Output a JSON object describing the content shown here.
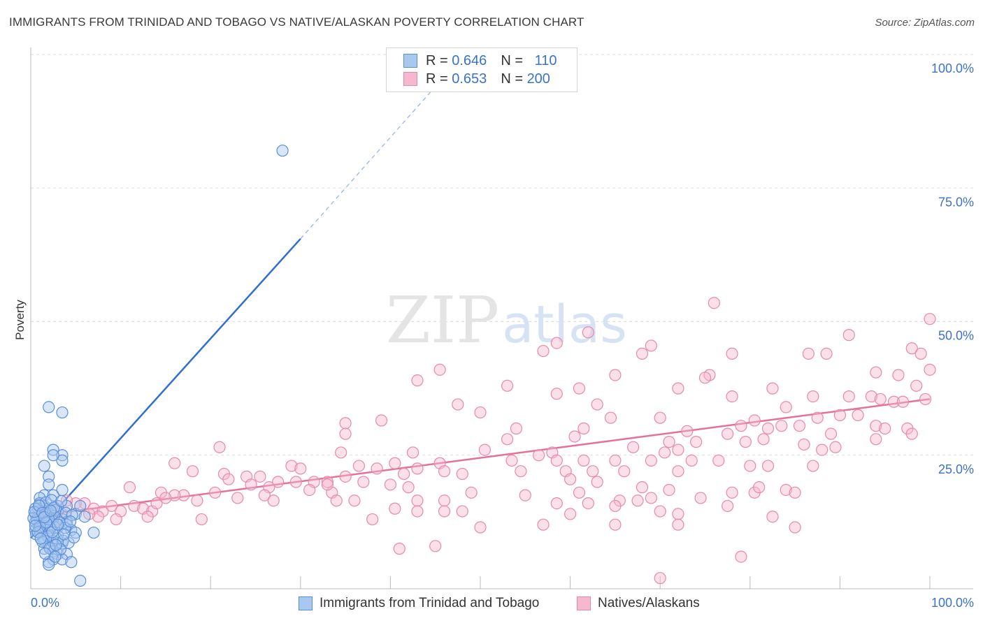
{
  "title": "IMMIGRANTS FROM TRINIDAD AND TOBAGO VS NATIVE/ALASKAN POVERTY CORRELATION CHART",
  "source": "Source: ZipAtlas.com",
  "watermark": {
    "zip": "ZIP",
    "atlas": "atlas"
  },
  "legend": {
    "rows": [
      {
        "r_label": "R =",
        "r_value": "0.646",
        "n_label": "N =",
        "n_value": "110"
      },
      {
        "r_label": "R =",
        "r_value": "0.653",
        "n_label": "N =",
        "n_value": "200"
      }
    ]
  },
  "colors": {
    "blue_fill": "#a9c8f0",
    "blue_stroke": "#5a8fd8",
    "blue_line": "#2f6fcf",
    "pink_fill": "#f6b8ce",
    "pink_stroke": "#e58aab",
    "pink_line": "#e4709c",
    "tick_label": "#3a73c8",
    "grid": "#dddddd"
  },
  "chart_data": {
    "type": "scatter",
    "ylabel": "Poverty",
    "x_ticks": [
      "0.0%",
      "100.0%"
    ],
    "y_ticks": [
      "25.0%",
      "50.0%",
      "75.0%",
      "100.0%"
    ],
    "xlim": [
      0,
      100
    ],
    "ylim": [
      0,
      100
    ],
    "grid": "horizontal dashed",
    "legend_placement": "bottom-center",
    "series": [
      {
        "name": "Immigrants from Trinidad and Tobago",
        "color": "blue",
        "trend": {
          "x0": 0,
          "y0": 9.5,
          "x1": 30,
          "y1": 65.5,
          "dashed_to": [
            45,
            94
          ]
        },
        "points": [
          [
            28,
            82
          ],
          [
            2,
            34
          ],
          [
            3.5,
            33
          ],
          [
            2.5,
            26
          ],
          [
            3.5,
            25
          ],
          [
            3.5,
            24
          ],
          [
            2.5,
            25
          ],
          [
            1.5,
            23
          ],
          [
            2,
            21
          ],
          [
            2,
            19.5
          ],
          [
            3.5,
            18.5
          ],
          [
            1.5,
            17.5
          ],
          [
            2.5,
            17.5
          ],
          [
            1,
            17
          ],
          [
            1,
            16
          ],
          [
            1.5,
            15.5
          ],
          [
            0.8,
            15
          ],
          [
            1,
            14.5
          ],
          [
            0.5,
            14
          ],
          [
            0.8,
            13.5
          ],
          [
            1,
            13
          ],
          [
            0.5,
            12.5
          ],
          [
            1,
            12
          ],
          [
            1.5,
            12
          ],
          [
            0.5,
            11
          ],
          [
            1,
            10.5
          ],
          [
            2,
            15
          ],
          [
            2,
            14
          ],
          [
            2.5,
            13
          ],
          [
            2,
            12.5
          ],
          [
            2.5,
            12
          ],
          [
            3,
            11.5
          ],
          [
            3,
            14.5
          ],
          [
            3.5,
            13
          ],
          [
            4,
            12.5
          ],
          [
            4,
            12
          ],
          [
            4.5,
            11
          ],
          [
            5,
            10.5
          ],
          [
            3,
            10
          ],
          [
            2,
            10
          ],
          [
            1.5,
            9.5
          ],
          [
            1.5,
            9
          ],
          [
            2.5,
            9
          ],
          [
            3,
            8.5
          ],
          [
            3.5,
            8.5
          ],
          [
            2,
            8
          ],
          [
            1.5,
            7.5
          ],
          [
            2.5,
            7
          ],
          [
            3,
            6.5
          ],
          [
            4,
            6.5
          ],
          [
            2.5,
            5.5
          ],
          [
            3.5,
            5.5
          ],
          [
            2,
            5
          ],
          [
            4.5,
            5
          ],
          [
            2,
            4.5
          ],
          [
            5.5,
            1.5
          ],
          [
            7,
            10.5
          ],
          [
            5,
            14
          ],
          [
            6,
            13.5
          ],
          [
            4,
            15.5
          ],
          [
            5.5,
            15.5
          ],
          [
            3,
            15.5
          ],
          [
            1,
            15.5
          ],
          [
            0.5,
            15
          ],
          [
            1.8,
            14.5
          ],
          [
            2.8,
            14.8
          ],
          [
            1.2,
            13.8
          ],
          [
            0.7,
            12.8
          ],
          [
            1.8,
            12.6
          ],
          [
            2.6,
            13.6
          ],
          [
            0.3,
            13.2
          ],
          [
            1.4,
            11.8
          ],
          [
            0.9,
            11.2
          ],
          [
            2.2,
            11.4
          ],
          [
            3.2,
            12.4
          ],
          [
            3.8,
            11.4
          ],
          [
            1.1,
            10.8
          ],
          [
            0.6,
            10.2
          ],
          [
            1.9,
            9.8
          ],
          [
            2.9,
            9.4
          ],
          [
            3.6,
            9.0
          ],
          [
            4.2,
            8.6
          ],
          [
            1.3,
            8.8
          ],
          [
            2.1,
            7.6
          ],
          [
            3.3,
            7.4
          ],
          [
            1.6,
            6.6
          ],
          [
            2.7,
            6.0
          ],
          [
            0.4,
            14.4
          ],
          [
            1.7,
            16.2
          ],
          [
            2.3,
            16.6
          ],
          [
            3.9,
            14.2
          ],
          [
            4.6,
            13.8
          ],
          [
            1.0,
            11.6
          ],
          [
            0.8,
            10.6
          ],
          [
            2.0,
            13.0
          ],
          [
            2.4,
            10.6
          ],
          [
            3.0,
            12.0
          ],
          [
            0.9,
            15.6
          ],
          [
            1.3,
            14.2
          ],
          [
            1.7,
            12.4
          ],
          [
            0.5,
            11.8
          ],
          [
            2.6,
            15.2
          ],
          [
            3.4,
            16.4
          ],
          [
            4.4,
            12.6
          ],
          [
            1.1,
            9.4
          ],
          [
            2.8,
            8.2
          ],
          [
            3.7,
            10.2
          ],
          [
            4.8,
            9.6
          ],
          [
            1.5,
            13.4
          ],
          [
            2.2,
            14.6
          ]
        ]
      },
      {
        "name": "Natives/Alaskans",
        "color": "pink",
        "trend": {
          "x0": 0,
          "y0": 13.5,
          "x1": 100,
          "y1": 35.5
        },
        "points": [
          [
            76,
            53.5
          ],
          [
            100,
            50.5
          ],
          [
            62,
            48
          ],
          [
            58.5,
            46
          ],
          [
            91,
            47.5
          ],
          [
            69,
            45.5
          ],
          [
            57,
            44.5
          ],
          [
            68,
            44
          ],
          [
            78,
            44
          ],
          [
            86.5,
            44
          ],
          [
            88.5,
            44
          ],
          [
            99,
            44
          ],
          [
            98,
            45
          ],
          [
            45.5,
            41
          ],
          [
            43,
            39
          ],
          [
            65,
            40
          ],
          [
            75.5,
            40
          ],
          [
            75,
            39.5
          ],
          [
            94,
            40.5
          ],
          [
            96.5,
            40
          ],
          [
            100,
            41
          ],
          [
            53,
            38
          ],
          [
            61,
            37.5
          ],
          [
            72,
            37.5
          ],
          [
            82.5,
            37.5
          ],
          [
            98.5,
            38
          ],
          [
            58.5,
            36.5
          ],
          [
            78,
            36
          ],
          [
            87,
            36
          ],
          [
            91,
            36
          ],
          [
            93.5,
            36
          ],
          [
            94.5,
            35.5
          ],
          [
            96,
            35
          ],
          [
            97,
            35
          ],
          [
            99.5,
            35.5
          ],
          [
            47.5,
            34.5
          ],
          [
            63,
            34.5
          ],
          [
            84,
            34
          ],
          [
            50,
            33
          ],
          [
            70,
            32
          ],
          [
            64.5,
            32
          ],
          [
            80.5,
            31.5
          ],
          [
            87.5,
            32
          ],
          [
            90,
            32.5
          ],
          [
            92,
            32.5
          ],
          [
            94,
            30.5
          ],
          [
            35,
            31
          ],
          [
            79,
            30.5
          ],
          [
            82,
            30
          ],
          [
            83.5,
            30.5
          ],
          [
            85.5,
            30.5
          ],
          [
            95,
            30
          ],
          [
            97.5,
            30
          ],
          [
            39,
            31.5
          ],
          [
            54,
            30
          ],
          [
            61.5,
            30
          ],
          [
            73,
            29.5
          ],
          [
            77.5,
            29
          ],
          [
            89,
            29
          ],
          [
            35,
            29
          ],
          [
            53,
            28
          ],
          [
            60.5,
            28.5
          ],
          [
            71,
            27.5
          ],
          [
            74,
            27.5
          ],
          [
            79.5,
            27.5
          ],
          [
            81.5,
            28
          ],
          [
            86,
            27
          ],
          [
            94,
            28
          ],
          [
            98,
            29
          ],
          [
            21,
            26.5
          ],
          [
            42.5,
            25.5
          ],
          [
            50.5,
            26
          ],
          [
            56.5,
            25
          ],
          [
            58,
            25.5
          ],
          [
            67,
            26.5
          ],
          [
            70.5,
            25.5
          ],
          [
            72,
            26
          ],
          [
            88,
            26
          ],
          [
            89.5,
            26.5
          ],
          [
            34.5,
            25.5
          ],
          [
            40.5,
            23.5
          ],
          [
            45.5,
            23.5
          ],
          [
            53.5,
            24
          ],
          [
            58.5,
            24
          ],
          [
            61.5,
            24
          ],
          [
            65,
            24
          ],
          [
            69,
            24
          ],
          [
            73.5,
            24
          ],
          [
            76.5,
            24
          ],
          [
            80,
            23
          ],
          [
            82,
            23
          ],
          [
            87,
            23
          ],
          [
            16,
            23.5
          ],
          [
            29,
            23
          ],
          [
            36.5,
            23
          ],
          [
            38.5,
            22.5
          ],
          [
            43,
            22.5
          ],
          [
            46,
            22
          ],
          [
            54.5,
            22
          ],
          [
            59.5,
            22
          ],
          [
            62.5,
            22
          ],
          [
            66,
            22
          ],
          [
            72,
            22
          ],
          [
            18,
            22
          ],
          [
            21.5,
            21.5
          ],
          [
            22,
            20.5
          ],
          [
            24,
            21
          ],
          [
            25.5,
            21
          ],
          [
            27.5,
            20
          ],
          [
            29.5,
            20
          ],
          [
            31.5,
            20
          ],
          [
            33,
            20
          ],
          [
            30,
            22.5
          ],
          [
            24.5,
            19.5
          ],
          [
            26.5,
            19
          ],
          [
            31,
            18.5
          ],
          [
            33.5,
            18
          ],
          [
            35,
            21
          ],
          [
            48,
            21.5
          ],
          [
            37,
            20
          ],
          [
            40,
            19.5
          ],
          [
            41.5,
            21.5
          ],
          [
            42,
            19
          ],
          [
            11,
            19
          ],
          [
            14.5,
            18
          ],
          [
            17,
            17.5
          ],
          [
            18.5,
            16.5
          ],
          [
            16,
            17.5
          ],
          [
            20.5,
            18
          ],
          [
            23,
            17
          ],
          [
            26,
            17.5
          ],
          [
            27,
            16.5
          ],
          [
            34,
            16.5
          ],
          [
            36,
            16.5
          ],
          [
            33,
            19.5
          ],
          [
            43,
            16.5
          ],
          [
            46,
            16.5
          ],
          [
            49,
            18
          ],
          [
            55,
            17.5
          ],
          [
            58.5,
            16
          ],
          [
            62,
            16
          ],
          [
            65.5,
            16.5
          ],
          [
            67.5,
            16.5
          ],
          [
            68,
            19
          ],
          [
            69,
            17
          ],
          [
            71,
            18.5
          ],
          [
            74.5,
            17
          ],
          [
            78,
            18
          ],
          [
            80.5,
            18
          ],
          [
            84,
            18.5
          ],
          [
            85,
            18
          ],
          [
            81,
            19
          ],
          [
            6,
            16
          ],
          [
            7,
            15
          ],
          [
            8,
            14.5
          ],
          [
            9,
            15.5
          ],
          [
            10,
            14.5
          ],
          [
            11.5,
            15.5
          ],
          [
            12.5,
            15
          ],
          [
            13.5,
            14.5
          ],
          [
            14,
            16
          ],
          [
            15,
            17
          ],
          [
            13,
            13.5
          ],
          [
            9.5,
            13
          ],
          [
            7.5,
            13.5
          ],
          [
            5,
            16
          ],
          [
            4,
            16.5
          ],
          [
            3,
            15.5
          ],
          [
            2,
            14
          ],
          [
            1.5,
            13
          ],
          [
            1,
            13.5
          ],
          [
            2.5,
            12.5
          ],
          [
            3.5,
            14
          ],
          [
            6.5,
            14
          ],
          [
            40.5,
            15
          ],
          [
            43,
            14.5
          ],
          [
            46,
            14.5
          ],
          [
            48,
            14.5
          ],
          [
            60,
            14
          ],
          [
            61,
            18
          ],
          [
            65,
            15.5
          ],
          [
            70,
            14.5
          ],
          [
            72,
            14
          ],
          [
            82.5,
            13.5
          ],
          [
            85,
            11.5
          ],
          [
            72,
            12
          ],
          [
            65,
            12
          ],
          [
            41,
            7.5
          ],
          [
            45,
            8
          ],
          [
            70,
            2
          ],
          [
            79,
            6
          ],
          [
            60,
            20.5
          ],
          [
            63,
            20
          ],
          [
            77.5,
            15.5
          ],
          [
            57,
            12
          ],
          [
            50,
            11.5
          ],
          [
            38,
            13
          ],
          [
            19,
            13
          ]
        ]
      }
    ]
  }
}
